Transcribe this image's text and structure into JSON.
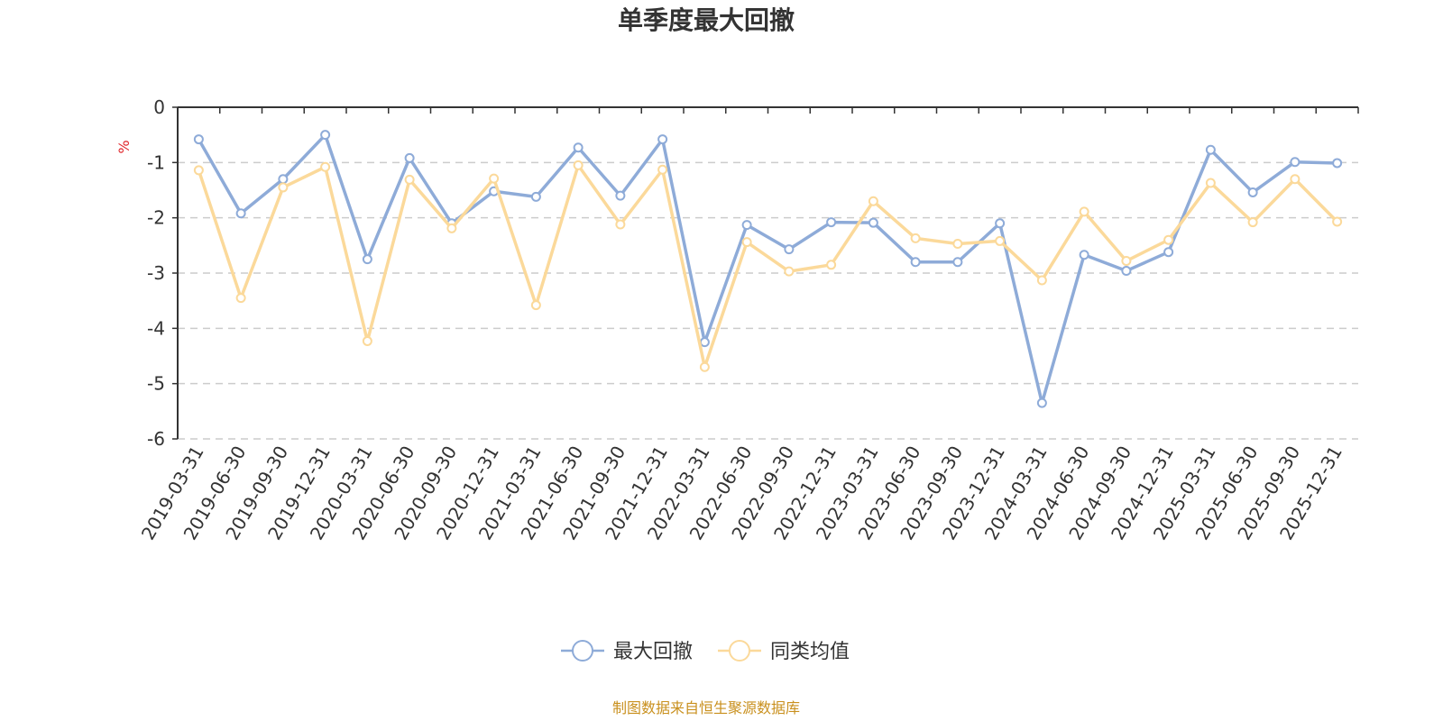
{
  "chart_data": {
    "type": "line",
    "title": "单季度最大回撤",
    "ylabel": "%",
    "xlabel": "",
    "ylim": [
      -6,
      0
    ],
    "yticks": [
      0,
      -1,
      -2,
      -3,
      -4,
      -5,
      -6
    ],
    "grid": true,
    "legend_position": "bottom",
    "categories": [
      "2019-03-31",
      "2019-06-30",
      "2019-09-30",
      "2019-12-31",
      "2020-03-31",
      "2020-06-30",
      "2020-09-30",
      "2020-12-31",
      "2021-03-31",
      "2021-06-30",
      "2021-09-30",
      "2021-12-31",
      "2022-03-31",
      "2022-06-30",
      "2022-09-30",
      "2022-12-31",
      "2023-03-31",
      "2023-06-30",
      "2023-09-30",
      "2023-12-31",
      "2024-03-31",
      "2024-06-30",
      "2024-09-30",
      "2024-12-31",
      "2025-03-31",
      "2025-06-30",
      "2025-09-30",
      "2025-12-31"
    ],
    "series": [
      {
        "name": "最大回撤",
        "color": "#8eabd8",
        "values": [
          -0.58,
          -1.92,
          -1.3,
          -0.5,
          -2.75,
          -0.92,
          -2.1,
          -1.52,
          -1.62,
          -0.73,
          -1.6,
          -0.58,
          -4.25,
          -2.13,
          -2.57,
          -2.08,
          -2.09,
          -2.8,
          -2.8,
          -2.1,
          -5.35,
          -2.67,
          -2.96,
          -2.62,
          -0.77,
          -1.54,
          -0.99,
          -1.01
        ]
      },
      {
        "name": "同类均值",
        "color": "#fbd99a",
        "values": [
          -1.14,
          -3.45,
          -1.45,
          -1.08,
          -4.23,
          -1.31,
          -2.19,
          -1.29,
          -3.58,
          -1.05,
          -2.12,
          -1.13,
          -4.7,
          -2.44,
          -2.97,
          -2.85,
          -1.7,
          -2.37,
          -2.47,
          -2.42,
          -3.13,
          -1.89,
          -2.78,
          -2.4,
          -1.37,
          -2.08,
          -1.3,
          -2.07
        ]
      }
    ],
    "source_note": "制图数据来自恒生聚源数据库"
  }
}
